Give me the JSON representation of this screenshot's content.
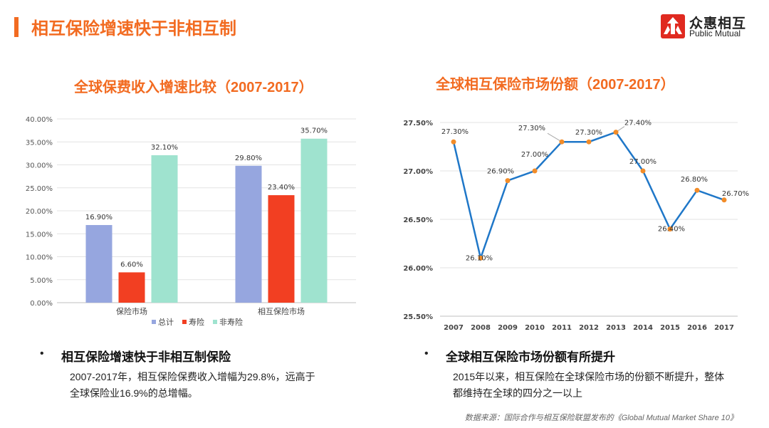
{
  "header": {
    "title": "相互保险增速快于非相互制"
  },
  "logo": {
    "cn": "众惠相互",
    "en": "Public Mutual"
  },
  "colors": {
    "accent": "#f26b21",
    "total": "#96a6df",
    "life": "#f23f22",
    "nonlife": "#9fe3cf",
    "line": "#1f77c8",
    "marker": "#f28c28"
  },
  "chart_data": [
    {
      "type": "bar",
      "title": "全球保费收入增速比较（2007-2017）",
      "categories": [
        "保险市场",
        "相互保险市场"
      ],
      "series": [
        {
          "name": "总计",
          "values": [
            16.9,
            29.8
          ],
          "labels": [
            "16.90%",
            "29.80%"
          ]
        },
        {
          "name": "寿险",
          "values": [
            6.6,
            23.4
          ],
          "labels": [
            "6.60%",
            "23.40%"
          ]
        },
        {
          "name": "非寿险",
          "values": [
            32.1,
            35.7
          ],
          "labels": [
            "32.10%",
            "35.70%"
          ]
        }
      ],
      "ylim": [
        0,
        40
      ],
      "yticks": [
        "0.00%",
        "5.00%",
        "10.00%",
        "15.00%",
        "20.00%",
        "25.00%",
        "30.00%",
        "35.00%",
        "40.00%"
      ],
      "grid": true,
      "legend": "bottom"
    },
    {
      "type": "line",
      "title": "全球相互保险市场份额（2007-2017）",
      "x": [
        "2007",
        "2008",
        "2009",
        "2010",
        "2011",
        "2012",
        "2013",
        "2014",
        "2015",
        "2016",
        "2017"
      ],
      "values": [
        27.3,
        26.1,
        26.9,
        27.0,
        27.3,
        27.3,
        27.4,
        27.0,
        26.4,
        26.8,
        26.7
      ],
      "labels": [
        "27.30%",
        "26.10%",
        "26.90%",
        "27.00%",
        "27.30%",
        "27.30%",
        "27.40%",
        "27.00%",
        "26.40%",
        "26.80%",
        "26.70%"
      ],
      "ylim": [
        25.5,
        27.5
      ],
      "yticks": [
        "25.50%",
        "26.00%",
        "26.50%",
        "27.00%",
        "27.50%"
      ],
      "grid": true
    }
  ],
  "bullets": [
    {
      "heading": "相互保险增速快于非相互制保险",
      "lines": [
        "2007-2017年，相互保险保费收入增幅为29.8%，远高于",
        "全球保险业16.9%的总增幅。"
      ]
    },
    {
      "heading": "全球相互保险市场份额有所提升",
      "lines": [
        "2015年以来，相互保险在全球保险市场的份额不断提升，整体",
        "都维持在全球的四分之一以上"
      ]
    }
  ],
  "source": "数据来源：国际合作与相互保险联盟发布的《Global Mutual Market Share 10》"
}
